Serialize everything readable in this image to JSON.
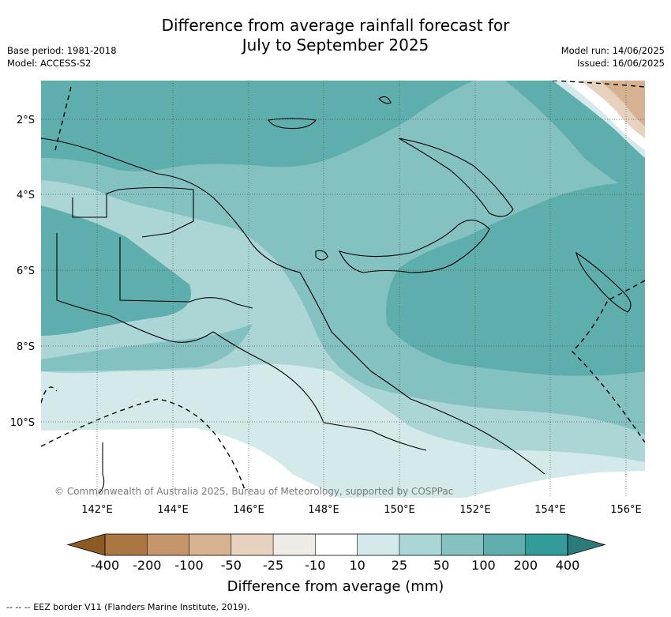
{
  "header": {
    "title_line1": "Difference from average rainfall forecast for",
    "title_line2": "July to September 2025",
    "base_period": "Base period: 1981-2018",
    "model": "Model: ACCESS-S2",
    "model_run": "Model run: 14/06/2025",
    "issued": "Issued: 16/06/2025"
  },
  "map": {
    "copyright": "© Commonwealth of Australia 2025, Bureau of Meteorology, supported by COSPPac",
    "lat_labels": [
      "2°S",
      "4°S",
      "6°S",
      "8°S",
      "10°S"
    ],
    "lon_labels": [
      "142°E",
      "144°E",
      "146°E",
      "148°E",
      "150°E",
      "152°E",
      "154°E",
      "156°E"
    ]
  },
  "colorbar": {
    "title": "Difference from average (mm)",
    "tick_labels": [
      "-400",
      "-200",
      "-100",
      "-50",
      "-25",
      "-10",
      "10",
      "25",
      "50",
      "100",
      "200",
      "400"
    ],
    "colors": [
      "#8e5a24",
      "#aa7642",
      "#c4966a",
      "#d6b291",
      "#e6d2bf",
      "#efebe6",
      "#ffffff",
      "#d4eaea",
      "#acd6d6",
      "#84c1c1",
      "#5eaeae",
      "#339c9a",
      "#2c7b78"
    ]
  },
  "footnote": "-- -- -- EEZ border V11 (Flanders Marine Institute, 2019)."
}
